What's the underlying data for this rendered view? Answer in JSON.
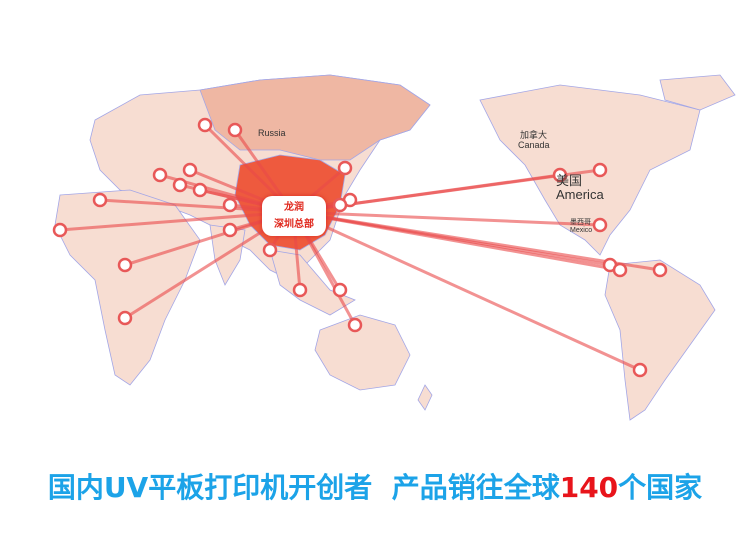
{
  "map": {
    "hub_label_line1": "龙润",
    "hub_label_line2": "深圳总部",
    "labels": {
      "russia": "Russia",
      "canada_cn": "加拿大",
      "canada_en": "Canada",
      "america_cn": "美国",
      "america_en": "America",
      "mexico_cn": "墨西哥",
      "mexico_en": "Mexico"
    },
    "colors": {
      "land": "#f7ddd2",
      "china": "#ee5a3e",
      "russia": "#efb7a3",
      "lines": "#e94a4a",
      "pins": "#e85858",
      "border": "#9aa0e0"
    }
  },
  "banner": {
    "prefix": "国内UV平板打印机开创者  产品销往全球",
    "count": "140",
    "suffix": "个国家"
  }
}
